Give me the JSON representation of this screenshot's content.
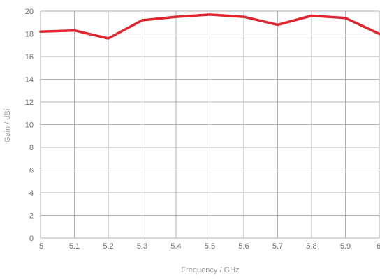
{
  "chart_data": {
    "type": "line",
    "title": "",
    "xlabel": "Frequency / GHz",
    "ylabel": "Gain / dBi",
    "xlim": [
      5,
      6
    ],
    "ylim": [
      0,
      20
    ],
    "x_ticks": [
      "5",
      "5.1",
      "5.2",
      "5.3",
      "5.4",
      "5.5",
      "5.6",
      "5.7",
      "5.8",
      "5.9",
      "6"
    ],
    "y_ticks": [
      "0",
      "2",
      "4",
      "6",
      "8",
      "10",
      "12",
      "14",
      "16",
      "18",
      "20"
    ],
    "grid": true,
    "series": [
      {
        "color": "#e0252e",
        "x": [
          5.0,
          5.1,
          5.2,
          5.3,
          5.4,
          5.5,
          5.6,
          5.7,
          5.8,
          5.9,
          6.0
        ],
        "y": [
          18.2,
          18.3,
          17.6,
          19.2,
          19.5,
          19.7,
          19.5,
          18.8,
          19.6,
          19.4,
          18.0
        ]
      }
    ]
  }
}
